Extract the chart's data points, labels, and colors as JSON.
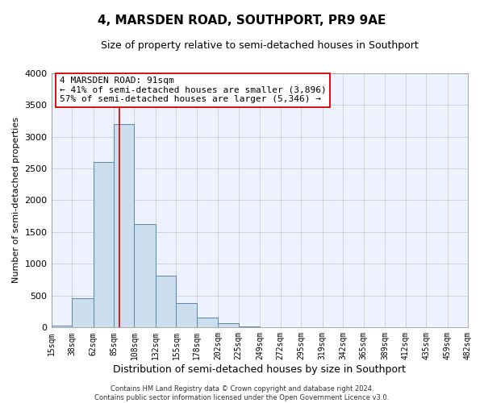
{
  "title": "4, MARSDEN ROAD, SOUTHPORT, PR9 9AE",
  "subtitle": "Size of property relative to semi-detached houses in Southport",
  "xlabel": "Distribution of semi-detached houses by size in Southport",
  "ylabel": "Number of semi-detached properties",
  "footer_line1": "Contains HM Land Registry data © Crown copyright and database right 2024.",
  "footer_line2": "Contains public sector information licensed under the Open Government Licence v3.0.",
  "bar_edges": [
    15,
    38,
    62,
    85,
    108,
    132,
    155,
    178,
    202,
    225,
    249,
    272,
    295,
    319,
    342,
    365,
    389,
    412,
    435,
    459,
    482
  ],
  "bar_heights": [
    30,
    460,
    2600,
    3200,
    1630,
    810,
    390,
    160,
    70,
    20,
    10,
    5,
    2,
    0,
    0,
    0,
    5,
    0,
    0,
    0,
    0
  ],
  "bar_color": "#ccdded",
  "bar_edge_color": "#5588aa",
  "property_line_x": 91,
  "property_line_color": "#cc0000",
  "annotation_title": "4 MARSDEN ROAD: 91sqm",
  "annotation_line1": "← 41% of semi-detached houses are smaller (3,896)",
  "annotation_line2": "57% of semi-detached houses are larger (5,346) →",
  "annotation_box_facecolor": "#ffffff",
  "annotation_box_edgecolor": "#cc0000",
  "ylim": [
    0,
    4000
  ],
  "xlim": [
    15,
    482
  ],
  "grid_color": "#cccccc",
  "plot_bg_color": "#eef2ff",
  "fig_bg_color": "#ffffff",
  "tick_labels": [
    "15sqm",
    "38sqm",
    "62sqm",
    "85sqm",
    "108sqm",
    "132sqm",
    "155sqm",
    "178sqm",
    "202sqm",
    "225sqm",
    "249sqm",
    "272sqm",
    "295sqm",
    "319sqm",
    "342sqm",
    "365sqm",
    "389sqm",
    "412sqm",
    "435sqm",
    "459sqm",
    "482sqm"
  ],
  "title_fontsize": 11,
  "subtitle_fontsize": 9,
  "ylabel_fontsize": 8,
  "xlabel_fontsize": 9,
  "ytick_fontsize": 8,
  "xtick_fontsize": 7,
  "annotation_fontsize": 8,
  "footer_fontsize": 6
}
